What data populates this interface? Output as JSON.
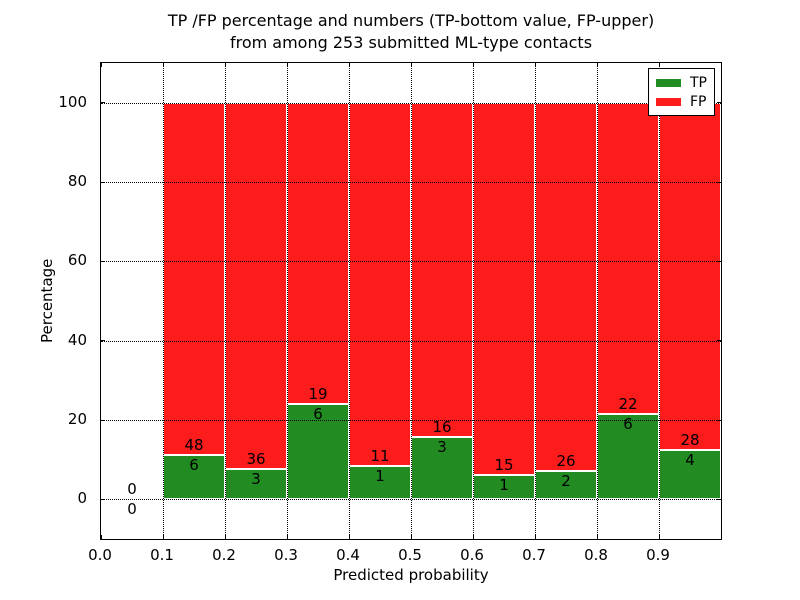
{
  "chart_data": {
    "type": "bar",
    "subtype": "stacked_percentage",
    "title": "TP /FP percentage and numbers (TP-bottom value, FP-upper) from among 253 submitted ML-type contacts",
    "title_lines": [
      "TP /FP percentage and numbers (TP-bottom value, FP-upper)",
      "from among 253 submitted ML-type contacts"
    ],
    "xlabel": "Predicted probability",
    "ylabel": "Percentage",
    "xlim": [
      0.0,
      1.0
    ],
    "ylim": [
      -10,
      110
    ],
    "grid": true,
    "legend_position": "upper right",
    "legend": [
      {
        "name": "tp",
        "label": "TP",
        "color": "#228B22"
      },
      {
        "name": "fp",
        "label": "FP",
        "color": "#FC1C1C"
      }
    ],
    "total_contacts": 253,
    "xticks": [
      {
        "v": 0.0,
        "label": "0.0"
      },
      {
        "v": 0.1,
        "label": "0.1"
      },
      {
        "v": 0.2,
        "label": "0.2"
      },
      {
        "v": 0.3,
        "label": "0.3"
      },
      {
        "v": 0.4,
        "label": "0.4"
      },
      {
        "v": 0.5,
        "label": "0.5"
      },
      {
        "v": 0.6,
        "label": "0.6"
      },
      {
        "v": 0.7,
        "label": "0.7"
      },
      {
        "v": 0.8,
        "label": "0.8"
      },
      {
        "v": 0.9,
        "label": "0.9"
      }
    ],
    "yticks": [
      {
        "v": 0,
        "label": "0"
      },
      {
        "v": 20,
        "label": "20"
      },
      {
        "v": 40,
        "label": "40"
      },
      {
        "v": 60,
        "label": "60"
      },
      {
        "v": 80,
        "label": "80"
      },
      {
        "v": 100,
        "label": "100"
      }
    ],
    "bins": [
      {
        "range": [
          0.0,
          0.1
        ],
        "tp": 0,
        "fp": 0,
        "tp_pct": 0.0,
        "fp_pct": 0.0
      },
      {
        "range": [
          0.1,
          0.2
        ],
        "tp": 6,
        "fp": 48,
        "tp_pct": 11.11,
        "fp_pct": 88.89
      },
      {
        "range": [
          0.2,
          0.3
        ],
        "tp": 3,
        "fp": 36,
        "tp_pct": 7.69,
        "fp_pct": 92.31
      },
      {
        "range": [
          0.3,
          0.4
        ],
        "tp": 6,
        "fp": 19,
        "tp_pct": 24.0,
        "fp_pct": 76.0
      },
      {
        "range": [
          0.4,
          0.5
        ],
        "tp": 1,
        "fp": 11,
        "tp_pct": 8.33,
        "fp_pct": 91.67
      },
      {
        "range": [
          0.5,
          0.6
        ],
        "tp": 3,
        "fp": 16,
        "tp_pct": 15.79,
        "fp_pct": 84.21
      },
      {
        "range": [
          0.6,
          0.7
        ],
        "tp": 1,
        "fp": 15,
        "tp_pct": 6.25,
        "fp_pct": 93.75
      },
      {
        "range": [
          0.7,
          0.8
        ],
        "tp": 2,
        "fp": 26,
        "tp_pct": 7.14,
        "fp_pct": 92.86
      },
      {
        "range": [
          0.8,
          0.9
        ],
        "tp": 6,
        "fp": 22,
        "tp_pct": 21.43,
        "fp_pct": 78.57
      },
      {
        "range": [
          0.9,
          1.0
        ],
        "tp": 4,
        "fp": 28,
        "tp_pct": 12.5,
        "fp_pct": 87.5
      }
    ]
  }
}
